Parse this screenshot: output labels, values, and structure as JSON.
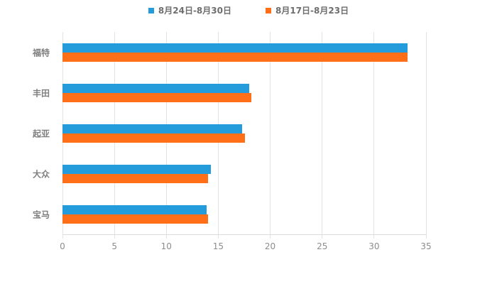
{
  "chart_data": {
    "type": "bar",
    "orientation": "horizontal",
    "title": "",
    "xlabel": "",
    "ylabel": "",
    "categories": [
      "福特",
      "丰田",
      "起亚",
      "大众",
      "宝马"
    ],
    "series": [
      {
        "name": "8月24日-8月30日",
        "color": "#249CDB",
        "values": [
          33.2,
          18.0,
          17.3,
          14.3,
          13.9
        ]
      },
      {
        "name": "8月17日-8月23日",
        "color": "#FF6F17",
        "values": [
          33.2,
          18.2,
          17.6,
          14.0,
          14.0
        ]
      }
    ],
    "xlim": [
      0,
      35
    ],
    "xticks": [
      0,
      5,
      10,
      15,
      20,
      25,
      30,
      35
    ],
    "grid": true,
    "legend_position": "top",
    "background_color": "#ffffff",
    "gridline_color": "#e3e3e3",
    "text_color": "#7f7f7f"
  }
}
